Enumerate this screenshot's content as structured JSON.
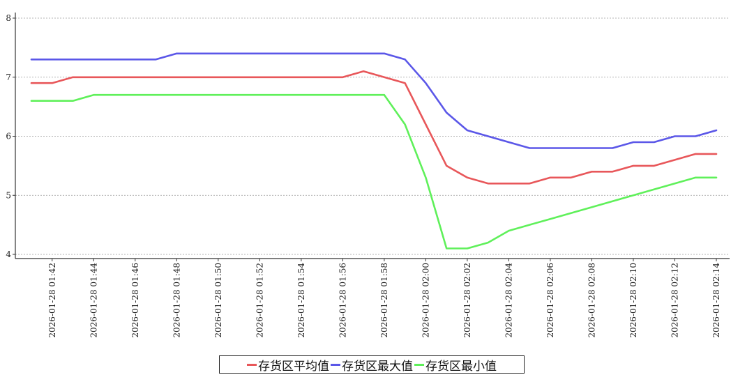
{
  "chart_data": {
    "type": "line",
    "title": "",
    "xlabel": "",
    "ylabel": "",
    "ylim": [
      4,
      8
    ],
    "yticks": [
      "4",
      "5",
      "6",
      "7",
      "8"
    ],
    "x": [
      "2026-01-28 01:41",
      "2026-01-28 01:42",
      "2026-01-28 01:43",
      "2026-01-28 01:44",
      "2026-01-28 01:45",
      "2026-01-28 01:46",
      "2026-01-28 01:47",
      "2026-01-28 01:48",
      "2026-01-28 01:49",
      "2026-01-28 01:50",
      "2026-01-28 01:51",
      "2026-01-28 01:52",
      "2026-01-28 01:53",
      "2026-01-28 01:54",
      "2026-01-28 01:55",
      "2026-01-28 01:56",
      "2026-01-28 01:57",
      "2026-01-28 01:58",
      "2026-01-28 01:59",
      "2026-01-28 02:00",
      "2026-01-28 02:01",
      "2026-01-28 02:02",
      "2026-01-28 02:03",
      "2026-01-28 02:04",
      "2026-01-28 02:05",
      "2026-01-28 02:06",
      "2026-01-28 02:07",
      "2026-01-28 02:08",
      "2026-01-28 02:09",
      "2026-01-28 02:10",
      "2026-01-28 02:11",
      "2026-01-28 02:12",
      "2026-01-28 02:13",
      "2026-01-28 02:14"
    ],
    "xtick_labels": [
      "2026-01-28 01:42",
      "2026-01-28 01:44",
      "2026-01-28 01:46",
      "2026-01-28 01:48",
      "2026-01-28 01:50",
      "2026-01-28 01:52",
      "2026-01-28 01:54",
      "2026-01-28 01:56",
      "2026-01-28 01:58",
      "2026-01-28 02:00",
      "2026-01-28 02:02",
      "2026-01-28 02:04",
      "2026-01-28 02:06",
      "2026-01-28 02:08",
      "2026-01-28 02:10",
      "2026-01-28 02:12",
      "2026-01-28 02:14"
    ],
    "series": [
      {
        "name": "存货区平均值",
        "color": "#e8575a",
        "values": [
          6.9,
          6.9,
          7.0,
          7.0,
          7.0,
          7.0,
          7.0,
          7.0,
          7.0,
          7.0,
          7.0,
          7.0,
          7.0,
          7.0,
          7.0,
          7.0,
          7.1,
          7.0,
          6.9,
          6.2,
          5.5,
          5.3,
          5.2,
          5.2,
          5.2,
          5.3,
          5.3,
          5.4,
          5.4,
          5.5,
          5.5,
          5.6,
          5.7,
          5.7
        ]
      },
      {
        "name": "存货区最大值",
        "color": "#5b57e8",
        "values": [
          7.3,
          7.3,
          7.3,
          7.3,
          7.3,
          7.3,
          7.3,
          7.4,
          7.4,
          7.4,
          7.4,
          7.4,
          7.4,
          7.4,
          7.4,
          7.4,
          7.4,
          7.4,
          7.3,
          6.9,
          6.4,
          6.1,
          6.0,
          5.9,
          5.8,
          5.8,
          5.8,
          5.8,
          5.8,
          5.9,
          5.9,
          6.0,
          6.0,
          6.1
        ]
      },
      {
        "name": "存货区最小值",
        "color": "#5ff05a",
        "values": [
          6.6,
          6.6,
          6.6,
          6.7,
          6.7,
          6.7,
          6.7,
          6.7,
          6.7,
          6.7,
          6.7,
          6.7,
          6.7,
          6.7,
          6.7,
          6.7,
          6.7,
          6.7,
          6.2,
          5.3,
          4.1,
          4.1,
          4.2,
          4.4,
          4.5,
          4.6,
          4.7,
          4.8,
          4.9,
          5.0,
          5.1,
          5.2,
          5.3,
          5.3
        ]
      }
    ],
    "grid": true,
    "legend_position": "bottom-center"
  }
}
